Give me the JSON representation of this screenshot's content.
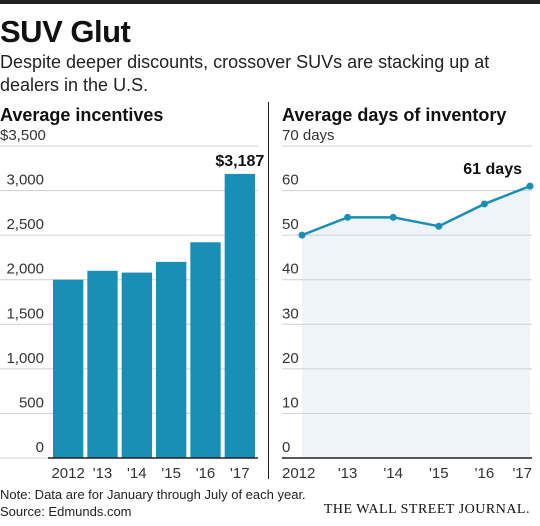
{
  "title": "SUV Glut",
  "subtitle": "Despite deeper discounts, crossover SUVs are stacking up at dealers in the U.S.",
  "note": "Note: Data are for January through July of each year.",
  "source": "Source: Edmunds.com",
  "logo": "THE WALL STREET JOURNAL.",
  "colors": {
    "bar": "#1a8fb5",
    "line": "#1a8fb5",
    "area": "#eef4f8",
    "grid": "#cfcfcf",
    "axis": "#222222"
  },
  "chart_data": [
    {
      "type": "bar",
      "title": "Average incentives",
      "categories": [
        "2012",
        "'13",
        "'14",
        "'15",
        "'16",
        "'17"
      ],
      "values": [
        2000,
        2100,
        2080,
        2200,
        2420,
        3187
      ],
      "ylim": [
        0,
        3500
      ],
      "yticks": [
        "0",
        "500",
        "1,000",
        "1,500",
        "2,000",
        "2,500",
        "3,000",
        "$3,500"
      ],
      "annotation": "$3,187",
      "grid": true
    },
    {
      "type": "line",
      "title": "Average days of inventory",
      "categories": [
        "2012",
        "'13",
        "'14",
        "'15",
        "'16",
        "'17"
      ],
      "values": [
        50,
        54,
        54,
        52,
        57,
        61
      ],
      "ylim": [
        0,
        70
      ],
      "yticks": [
        "0",
        "10",
        "20",
        "30",
        "40",
        "50",
        "60",
        "70 days"
      ],
      "annotation": "61 days",
      "grid": true
    }
  ]
}
